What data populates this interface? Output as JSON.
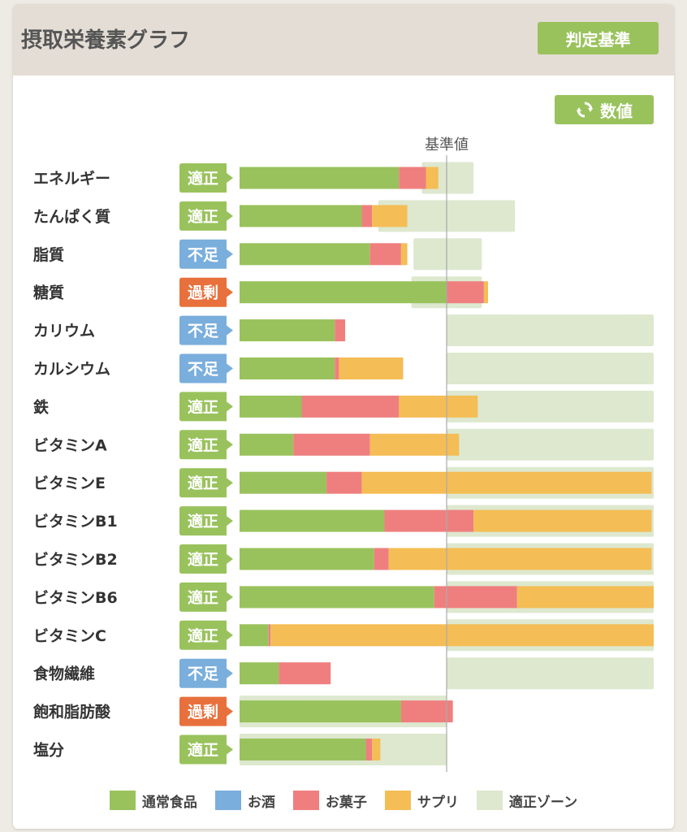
{
  "header": {
    "title": "摂取栄養素グラフ",
    "criteria_button": "判定基準"
  },
  "values_button": {
    "label": "数値",
    "icon": "refresh-icon"
  },
  "colors": {
    "food": "#99c25c",
    "alcohol": "#7aaedc",
    "snack": "#ef7f7f",
    "supplement": "#f4bd55",
    "zone": "#dde8cf",
    "status_ok": "#99c25c",
    "status_low": "#7aaedc",
    "status_high": "#e8703c"
  },
  "chart_data": {
    "type": "bar",
    "orientation": "horizontal",
    "stacked": true,
    "reference_label": "基準値",
    "reference_value": 100,
    "xlim": [
      0,
      200
    ],
    "grid": false,
    "legend_position": "bottom",
    "categories": [
      "エネルギー",
      "たんぱく質",
      "脂質",
      "糖質",
      "カリウム",
      "カルシウム",
      "鉄",
      "ビタミンA",
      "ビタミンE",
      "ビタミンB1",
      "ビタミンB2",
      "ビタミンB6",
      "ビタミンC",
      "食物繊維",
      "飽和脂肪酸",
      "塩分"
    ],
    "status": [
      "適正",
      "適正",
      "不足",
      "過剰",
      "不足",
      "不足",
      "適正",
      "適正",
      "適正",
      "適正",
      "適正",
      "適正",
      "適正",
      "不足",
      "過剰",
      "適正"
    ],
    "status_kind": [
      "ok",
      "ok",
      "low",
      "high",
      "low",
      "low",
      "ok",
      "ok",
      "ok",
      "ok",
      "ok",
      "ok",
      "ok",
      "low",
      "high",
      "ok"
    ],
    "series": [
      {
        "name": "通常食品",
        "key": "food",
        "values": [
          77,
          59,
          63,
          100,
          46,
          46,
          30,
          26,
          42,
          70,
          65,
          94,
          14,
          19,
          78,
          61
        ]
      },
      {
        "name": "お酒",
        "key": "alcohol",
        "values": [
          0,
          0,
          0,
          0,
          0,
          0,
          0,
          0,
          0,
          0,
          0,
          0,
          0,
          0,
          0,
          0
        ]
      },
      {
        "name": "お菓子",
        "key": "snack",
        "values": [
          13,
          5,
          15,
          18,
          5,
          2,
          47,
          37,
          17,
          43,
          7,
          40,
          1,
          25,
          25,
          3
        ]
      },
      {
        "name": "サプリ",
        "key": "supplement",
        "values": [
          6,
          17,
          3,
          2,
          0,
          31,
          38,
          43,
          140,
          86,
          127,
          66,
          185,
          0,
          0,
          4
        ]
      }
    ],
    "zones": [
      [
        88,
        113
      ],
      [
        67,
        133
      ],
      [
        84,
        117
      ],
      [
        83,
        117
      ],
      [
        100,
        200
      ],
      [
        100,
        200
      ],
      [
        100,
        200
      ],
      [
        100,
        200
      ],
      [
        100,
        200
      ],
      [
        100,
        200
      ],
      [
        100,
        200
      ],
      [
        100,
        200
      ],
      [
        100,
        200
      ],
      [
        100,
        200
      ],
      [
        0,
        100
      ],
      [
        0,
        100
      ]
    ],
    "zone_label": "適正ゾーン"
  },
  "legend": [
    {
      "label": "通常食品",
      "key": "food"
    },
    {
      "label": "お酒",
      "key": "alcohol"
    },
    {
      "label": "お菓子",
      "key": "snack"
    },
    {
      "label": "サプリ",
      "key": "supplement"
    },
    {
      "label": "適正ゾーン",
      "key": "zone"
    }
  ]
}
